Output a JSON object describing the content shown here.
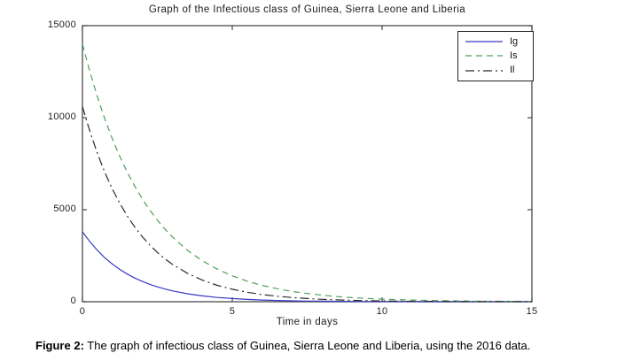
{
  "chart_data": {
    "type": "line",
    "title": "Graph of the Infectious class of Guinea, Sierra Leone and Liberia",
    "xlabel": "Time in days",
    "ylabel": "",
    "xlim": [
      0,
      15
    ],
    "ylim": [
      0,
      15000
    ],
    "x_ticks": [
      0,
      5,
      10,
      15
    ],
    "y_ticks": [
      0,
      5000,
      10000,
      15000
    ],
    "grid": false,
    "legend_position": "top-right",
    "series": [
      {
        "name": "Ig",
        "color": "#3838c4",
        "style": "solid",
        "points": [
          [
            0,
            3800
          ],
          [
            0.25,
            3254
          ],
          [
            0.5,
            2787
          ],
          [
            0.75,
            2387
          ],
          [
            1,
            2044
          ],
          [
            1.25,
            1750
          ],
          [
            1.5,
            1499
          ],
          [
            1.75,
            1284
          ],
          [
            2,
            1099
          ],
          [
            2.25,
            942
          ],
          [
            2.5,
            806
          ],
          [
            2.75,
            691
          ],
          [
            3,
            591
          ],
          [
            3.5,
            434
          ],
          [
            4,
            318
          ],
          [
            4.5,
            233
          ],
          [
            5,
            171
          ],
          [
            5.5,
            125
          ],
          [
            6,
            92
          ],
          [
            6.5,
            67
          ],
          [
            7,
            49
          ],
          [
            7.5,
            36
          ],
          [
            8,
            27
          ],
          [
            8.5,
            19
          ],
          [
            9,
            14
          ],
          [
            9.5,
            10
          ],
          [
            10,
            8
          ],
          [
            11,
            4
          ],
          [
            12,
            2
          ],
          [
            13,
            1
          ],
          [
            14,
            1
          ],
          [
            15,
            0
          ]
        ]
      },
      {
        "name": "Is",
        "color": "#4f9e58",
        "style": "dashed",
        "points": [
          [
            0,
            14000
          ],
          [
            0.25,
            12479
          ],
          [
            0.5,
            11124
          ],
          [
            0.75,
            9916
          ],
          [
            1,
            8839
          ],
          [
            1.25,
            7879
          ],
          [
            1.5,
            7023
          ],
          [
            1.75,
            6261
          ],
          [
            2,
            5581
          ],
          [
            2.25,
            4973
          ],
          [
            2.5,
            4433
          ],
          [
            2.75,
            3951
          ],
          [
            3,
            3522
          ],
          [
            3.5,
            2799
          ],
          [
            4,
            2224
          ],
          [
            4.5,
            1767
          ],
          [
            5,
            1404
          ],
          [
            5.5,
            1116
          ],
          [
            6,
            887
          ],
          [
            6.5,
            705
          ],
          [
            7,
            560
          ],
          [
            7.5,
            445
          ],
          [
            8,
            354
          ],
          [
            8.5,
            281
          ],
          [
            9,
            223
          ],
          [
            9.5,
            178
          ],
          [
            10,
            141
          ],
          [
            11,
            89
          ],
          [
            12,
            56
          ],
          [
            13,
            36
          ],
          [
            14,
            22
          ],
          [
            15,
            14
          ]
        ]
      },
      {
        "name": "Il",
        "color": "#2b2b2b",
        "style": "dashdot",
        "points": [
          [
            0,
            10600
          ],
          [
            0.25,
            9238
          ],
          [
            0.5,
            8051
          ],
          [
            0.75,
            7017
          ],
          [
            1,
            6115
          ],
          [
            1.25,
            5330
          ],
          [
            1.5,
            4645
          ],
          [
            1.75,
            4048
          ],
          [
            2,
            3528
          ],
          [
            2.25,
            3075
          ],
          [
            2.5,
            2680
          ],
          [
            2.75,
            2336
          ],
          [
            3,
            2036
          ],
          [
            3.5,
            1546
          ],
          [
            4,
            1174
          ],
          [
            4.5,
            891
          ],
          [
            5,
            677
          ],
          [
            5.5,
            514
          ],
          [
            6,
            390
          ],
          [
            6.5,
            296
          ],
          [
            7,
            225
          ],
          [
            7.5,
            171
          ],
          [
            8,
            130
          ],
          [
            8.5,
            99
          ],
          [
            9,
            75
          ],
          [
            9.5,
            57
          ],
          [
            10,
            43
          ],
          [
            11,
            25
          ],
          [
            12,
            14
          ],
          [
            13,
            8
          ],
          [
            14,
            5
          ],
          [
            15,
            3
          ]
        ]
      }
    ]
  },
  "caption": {
    "prefix": "Figure 2:",
    "text": " The graph of infectious class of Guinea, Sierra Leone and Liberia, using the 2016 data."
  },
  "colors": {
    "axis": "#4a4a4a",
    "tick_label": "#222222",
    "background": "#ffffff",
    "legend_border": "#222222"
  }
}
